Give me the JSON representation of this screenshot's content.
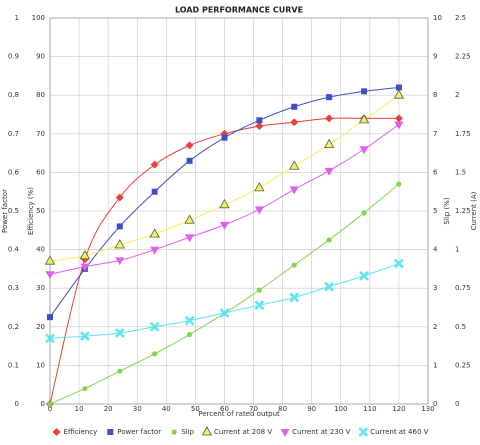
{
  "chart_data": {
    "type": "line",
    "title": "LOAD PERFORMANCE CURVE",
    "x_label": "Percent of rated output",
    "xlim": [
      0,
      130
    ],
    "xticks": [
      0,
      10,
      20,
      30,
      40,
      50,
      60,
      70,
      80,
      90,
      100,
      110,
      120,
      130
    ],
    "grid": true,
    "legend": "bottom",
    "axes": {
      "power_factor": {
        "label": "Power factor",
        "side": "left",
        "lim": [
          0,
          1
        ],
        "ticks": [
          0,
          0.1,
          0.2,
          0.3,
          0.4,
          0.5,
          0.6,
          0.7,
          0.8,
          0.9,
          1
        ]
      },
      "efficiency": {
        "label": "Efficiency (%)",
        "side": "left",
        "lim": [
          0,
          100
        ],
        "ticks": [
          0,
          10,
          20,
          30,
          40,
          50,
          60,
          70,
          80,
          90,
          100
        ]
      },
      "slip": {
        "label": "Slip (%)",
        "side": "right",
        "lim": [
          0,
          10
        ],
        "ticks": [
          0,
          1,
          2,
          3,
          4,
          5,
          6,
          7,
          8,
          9,
          10
        ]
      },
      "current": {
        "label": "Current (A)",
        "side": "right",
        "lim": [
          0,
          2.5
        ],
        "ticks": [
          0,
          0.25,
          0.5,
          0.75,
          1,
          1.25,
          1.5,
          1.75,
          2,
          2.25,
          2.5
        ]
      }
    },
    "x": [
      0,
      12,
      24,
      36,
      48,
      60,
      72,
      84,
      96,
      108,
      120
    ],
    "series": [
      {
        "name": "Efficiency",
        "axis": "efficiency",
        "color": "#e8413c",
        "marker": "diamond",
        "values": [
          0,
          37.5,
          53.5,
          62,
          67,
          70,
          72,
          73,
          74,
          74,
          74
        ]
      },
      {
        "name": "Power factor",
        "axis": "power_factor",
        "color": "#3d4fc8",
        "marker": "square",
        "values": [
          0.225,
          0.35,
          0.46,
          0.55,
          0.63,
          0.69,
          0.735,
          0.77,
          0.795,
          0.81,
          0.82
        ]
      },
      {
        "name": "Slip",
        "axis": "slip",
        "color": "#7ed84c",
        "marker": "circle",
        "values": [
          0,
          0.4,
          0.85,
          1.3,
          1.8,
          2.35,
          2.95,
          3.6,
          4.25,
          4.95,
          5.7
        ]
      },
      {
        "name": "Current at 208 V",
        "axis": "current",
        "color": "#f2f25a",
        "marker": "triangle-up",
        "values": [
          0.925,
          0.96,
          1.03,
          1.1,
          1.19,
          1.29,
          1.4,
          1.54,
          1.68,
          1.84,
          2.0
        ]
      },
      {
        "name": "Current at 230 V",
        "axis": "current",
        "color": "#e05ef0",
        "marker": "triangle-down",
        "values": [
          0.84,
          0.89,
          0.93,
          1.0,
          1.08,
          1.16,
          1.26,
          1.39,
          1.51,
          1.65,
          1.81
        ]
      },
      {
        "name": "Current at 460 V",
        "axis": "current",
        "color": "#5ee6f0",
        "marker": "x",
        "values": [
          0.425,
          0.44,
          0.46,
          0.5,
          0.54,
          0.59,
          0.64,
          0.69,
          0.76,
          0.83,
          0.91
        ]
      }
    ]
  }
}
